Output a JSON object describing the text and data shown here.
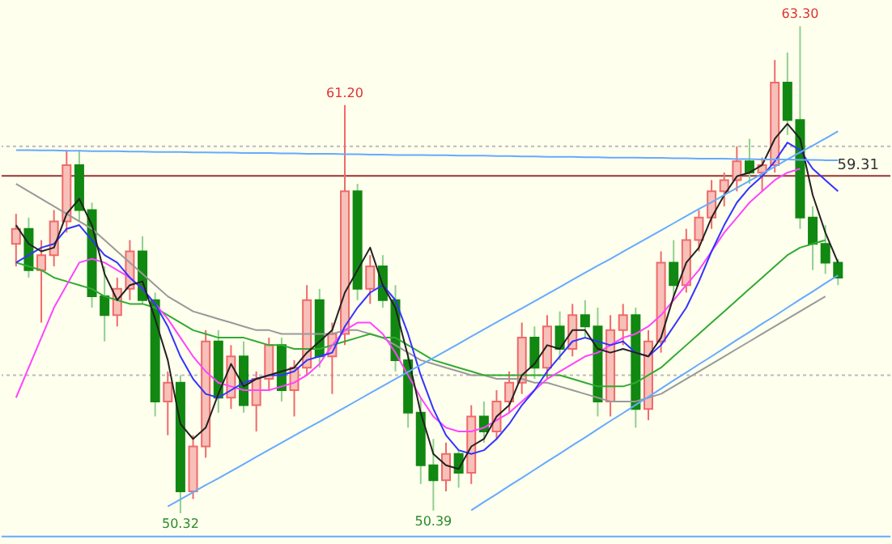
{
  "chart_data": {
    "type": "candlestick",
    "categories": [
      null,
      null,
      null,
      null,
      null,
      null,
      null,
      null,
      null,
      null,
      null,
      null,
      null,
      null,
      null,
      null,
      null,
      null,
      null,
      null,
      null,
      null,
      null,
      null,
      null,
      null,
      null,
      null,
      null,
      null,
      null,
      null,
      null,
      null,
      null,
      null,
      null,
      null,
      null,
      null,
      null,
      null,
      null,
      null,
      null,
      null,
      null,
      null,
      null,
      null,
      null,
      null,
      null,
      null,
      null,
      null,
      null,
      null,
      null,
      null,
      null,
      null,
      null,
      null,
      null,
      null
    ],
    "ohlc": [
      [
        57.5,
        58.3,
        56.9,
        57.9
      ],
      [
        57.9,
        58.2,
        56.6,
        56.8
      ],
      [
        56.8,
        57.6,
        55.4,
        57.2
      ],
      [
        57.2,
        58.4,
        56.9,
        58.1
      ],
      [
        58.1,
        60.0,
        57.8,
        59.6
      ],
      [
        59.6,
        60.0,
        58.1,
        58.4
      ],
      [
        58.4,
        58.6,
        55.8,
        56.1
      ],
      [
        56.1,
        56.9,
        54.9,
        55.6
      ],
      [
        55.6,
        56.6,
        55.3,
        56.3
      ],
      [
        56.3,
        57.6,
        56.0,
        57.3
      ],
      [
        57.3,
        57.7,
        55.9,
        56.0
      ],
      [
        56.0,
        56.2,
        52.9,
        53.3
      ],
      [
        53.3,
        54.1,
        52.4,
        53.8
      ],
      [
        53.8,
        54.0,
        50.32,
        50.9
      ],
      [
        50.9,
        52.4,
        50.7,
        52.1
      ],
      [
        52.1,
        55.2,
        51.8,
        54.9
      ],
      [
        54.9,
        55.2,
        53.0,
        53.4
      ],
      [
        53.4,
        54.8,
        53.1,
        54.5
      ],
      [
        54.5,
        54.9,
        53.0,
        53.2
      ],
      [
        53.2,
        54.1,
        52.5,
        53.9
      ],
      [
        53.9,
        55.0,
        53.6,
        54.8
      ],
      [
        54.8,
        55.0,
        53.3,
        53.6
      ],
      [
        53.6,
        54.4,
        52.9,
        54.2
      ],
      [
        54.2,
        56.4,
        54.0,
        56.0
      ],
      [
        56.0,
        56.3,
        54.2,
        54.5
      ],
      [
        54.5,
        55.4,
        53.5,
        55.1
      ],
      [
        55.1,
        61.2,
        54.8,
        58.9
      ],
      [
        58.9,
        59.1,
        56.0,
        56.3
      ],
      [
        56.3,
        57.2,
        55.9,
        56.9
      ],
      [
        56.9,
        57.2,
        55.8,
        56.0
      ],
      [
        56.0,
        56.4,
        54.1,
        54.4
      ],
      [
        54.4,
        54.6,
        52.6,
        53.0
      ],
      [
        53.0,
        53.4,
        51.1,
        51.6
      ],
      [
        51.6,
        52.3,
        50.39,
        51.2
      ],
      [
        51.2,
        52.2,
        50.9,
        51.9
      ],
      [
        51.9,
        52.0,
        51.0,
        51.4
      ],
      [
        51.4,
        53.2,
        51.1,
        52.9
      ],
      [
        52.9,
        53.3,
        52.2,
        52.5
      ],
      [
        52.5,
        53.6,
        52.3,
        53.3
      ],
      [
        53.3,
        54.1,
        53.0,
        53.8
      ],
      [
        53.8,
        55.4,
        53.5,
        55.0
      ],
      [
        55.0,
        55.3,
        53.9,
        54.2
      ],
      [
        54.2,
        55.6,
        53.9,
        55.3
      ],
      [
        55.3,
        55.7,
        54.4,
        54.7
      ],
      [
        54.7,
        55.9,
        54.5,
        55.6
      ],
      [
        55.6,
        56.0,
        55.0,
        55.3
      ],
      [
        55.3,
        55.8,
        52.9,
        53.3
      ],
      [
        53.3,
        55.6,
        52.9,
        55.2
      ],
      [
        55.2,
        55.9,
        54.8,
        55.6
      ],
      [
        55.6,
        55.8,
        52.6,
        53.1
      ],
      [
        53.1,
        55.2,
        52.8,
        54.9
      ],
      [
        54.9,
        57.3,
        54.6,
        57.0
      ],
      [
        57.0,
        57.6,
        56.1,
        56.4
      ],
      [
        56.4,
        57.9,
        56.2,
        57.6
      ],
      [
        57.6,
        58.4,
        57.3,
        58.2
      ],
      [
        58.2,
        59.2,
        57.9,
        58.9
      ],
      [
        58.9,
        59.4,
        58.5,
        59.2
      ],
      [
        59.2,
        60.1,
        58.9,
        59.7
      ],
      [
        59.7,
        60.3,
        59.1,
        59.4
      ],
      [
        59.4,
        59.8,
        58.9,
        59.6
      ],
      [
        59.6,
        62.4,
        59.4,
        61.8
      ],
      [
        61.8,
        62.6,
        60.4,
        60.8
      ],
      [
        60.8,
        63.3,
        57.9,
        58.2
      ],
      [
        58.2,
        58.5,
        56.8,
        57.5
      ],
      [
        57.5,
        58.0,
        56.7,
        57.0
      ],
      [
        57.0,
        57.1,
        56.4,
        56.6
      ]
    ],
    "ylim": [
      49.5,
      64.0
    ],
    "tick_labels": false,
    "series": [
      {
        "type": "line",
        "color": "#999999",
        "values": [
          59.1,
          58.9,
          58.7,
          58.5,
          58.3,
          58.1,
          57.9,
          57.6,
          57.3,
          57.0,
          56.7,
          56.4,
          56.1,
          55.9,
          55.7,
          55.6,
          55.5,
          55.4,
          55.3,
          55.2,
          55.2,
          55.1,
          55.1,
          55.1,
          55.1,
          55.1,
          55.2,
          55.2,
          55.1,
          55.0,
          54.8,
          54.6,
          54.4,
          54.3,
          54.2,
          54.1,
          54.0,
          54.0,
          53.9,
          53.9,
          53.9,
          53.8,
          53.8,
          53.7,
          53.6,
          53.5,
          53.4,
          53.3,
          53.3,
          53.3,
          53.4,
          53.5,
          53.7,
          53.9,
          54.1,
          54.3,
          54.5,
          54.7,
          54.9,
          55.1,
          55.3,
          55.5,
          55.7,
          55.9,
          56.1,
          null
        ]
      },
      {
        "type": "line",
        "color": "#33aa33",
        "values": [
          57.0,
          56.9,
          56.8,
          56.6,
          56.5,
          56.4,
          56.3,
          56.1,
          56.0,
          55.9,
          55.9,
          55.8,
          55.6,
          55.4,
          55.2,
          55.1,
          55.0,
          55.0,
          55.0,
          54.9,
          54.8,
          54.8,
          54.7,
          54.7,
          54.7,
          54.8,
          54.9,
          55.0,
          55.1,
          55.0,
          55.0,
          54.8,
          54.6,
          54.4,
          54.3,
          54.2,
          54.1,
          54.0,
          54.0,
          54.0,
          54.0,
          54.0,
          54.0,
          54.0,
          53.9,
          53.8,
          53.7,
          53.7,
          53.7,
          53.8,
          54.0,
          54.2,
          54.5,
          54.8,
          55.1,
          55.4,
          55.7,
          56.0,
          56.3,
          56.6,
          56.9,
          57.2,
          57.4,
          57.5,
          57.6,
          null
        ]
      },
      {
        "type": "line",
        "color": "#ff44ff",
        "values": [
          53.4,
          54.2,
          55.0,
          55.8,
          56.4,
          57.0,
          57.1,
          57.0,
          56.8,
          56.6,
          56.3,
          55.9,
          55.5,
          55.0,
          54.5,
          54.1,
          53.8,
          53.7,
          53.6,
          53.6,
          53.6,
          53.7,
          53.8,
          54.0,
          54.3,
          54.8,
          55.2,
          55.4,
          55.4,
          55.1,
          54.6,
          54.0,
          53.4,
          52.9,
          52.6,
          52.5,
          52.5,
          52.6,
          52.8,
          53.0,
          53.3,
          53.6,
          53.9,
          54.1,
          54.3,
          54.5,
          54.6,
          54.8,
          55.0,
          55.1,
          55.3,
          55.6,
          56.0,
          56.4,
          56.8,
          57.3,
          57.8,
          58.2,
          58.6,
          58.9,
          59.2,
          59.4,
          59.5,
          null,
          null,
          null
        ]
      },
      {
        "type": "line",
        "color": "#3333ff",
        "values": [
          57.0,
          57.2,
          57.4,
          57.5,
          57.9,
          58.0,
          57.6,
          57.2,
          57.0,
          56.6,
          56.3,
          55.9,
          55.3,
          54.5,
          53.9,
          53.5,
          53.4,
          53.6,
          53.8,
          53.9,
          54.0,
          54.0,
          54.1,
          54.4,
          54.5,
          54.6,
          55.3,
          55.8,
          56.2,
          56.4,
          56.0,
          55.1,
          54.0,
          53.1,
          52.4,
          52.0,
          51.9,
          52.0,
          52.3,
          52.7,
          53.2,
          53.6,
          54.1,
          54.5,
          54.9,
          55.0,
          54.9,
          54.8,
          54.9,
          54.6,
          54.5,
          54.8,
          55.3,
          55.8,
          56.5,
          57.3,
          58.0,
          58.6,
          59.0,
          59.3,
          59.7,
          60.2,
          60.0,
          59.5,
          59.2,
          58.9
        ]
      },
      {
        "type": "line",
        "color": "#222222",
        "values": [
          58.0,
          57.5,
          57.3,
          57.4,
          58.3,
          58.7,
          58.0,
          56.7,
          56.0,
          56.4,
          56.5,
          55.5,
          54.4,
          52.7,
          52.3,
          52.6,
          53.5,
          54.3,
          53.7,
          53.9,
          54.0,
          54.1,
          54.2,
          54.6,
          54.9,
          55.2,
          56.2,
          56.8,
          57.4,
          56.4,
          55.8,
          54.5,
          53.0,
          51.9,
          51.6,
          51.5,
          52.1,
          52.3,
          52.9,
          53.2,
          54.0,
          54.3,
          54.8,
          54.7,
          55.2,
          55.2,
          54.7,
          54.6,
          54.7,
          54.6,
          54.5,
          55.0,
          56.1,
          57.0,
          57.4,
          58.2,
          58.8,
          59.3,
          59.4,
          59.6,
          60.3,
          60.7,
          60.3,
          58.8,
          57.8,
          57.0
        ]
      },
      {
        "type": "line",
        "color": "#66aaff",
        "values": [
          60.0,
          60.0,
          59.99,
          59.99,
          59.98,
          59.98,
          59.97,
          59.97,
          59.97,
          59.96,
          59.96,
          59.95,
          59.95,
          59.95,
          59.94,
          59.94,
          59.93,
          59.93,
          59.92,
          59.92,
          59.92,
          59.91,
          59.91,
          59.9,
          59.9,
          59.9,
          59.89,
          59.89,
          59.88,
          59.88,
          59.87,
          59.87,
          59.87,
          59.86,
          59.86,
          59.85,
          59.85,
          59.85,
          59.84,
          59.84,
          59.83,
          59.83,
          59.82,
          59.82,
          59.82,
          59.81,
          59.81,
          59.8,
          59.8,
          59.8,
          59.79,
          59.79,
          59.78,
          59.78,
          59.77,
          59.77,
          59.77,
          59.76,
          59.76,
          59.75,
          59.75,
          59.75,
          59.74,
          59.74,
          59.73,
          59.73
        ]
      },
      {
        "type": "line",
        "color": "#66aaff",
        "values": [
          null,
          null,
          null,
          null,
          null,
          null,
          null,
          null,
          null,
          null,
          null,
          null,
          50.5,
          50.69,
          50.88,
          51.07,
          51.25,
          51.44,
          51.63,
          51.82,
          52.01,
          52.2,
          52.39,
          52.58,
          52.76,
          52.95,
          53.14,
          53.33,
          53.52,
          53.71,
          53.9,
          54.09,
          54.27,
          54.46,
          54.65,
          54.84,
          55.03,
          55.22,
          55.41,
          55.6,
          55.78,
          55.97,
          56.16,
          56.35,
          56.54,
          56.73,
          56.92,
          57.1,
          57.29,
          57.48,
          57.67,
          57.86,
          58.05,
          58.24,
          58.43,
          58.61,
          58.8,
          58.99,
          59.18,
          59.37,
          59.56,
          59.75,
          59.94,
          60.12,
          60.31,
          60.5
        ]
      },
      {
        "type": "line",
        "color": "#66aaff",
        "values": [
          null,
          null,
          null,
          null,
          null,
          null,
          null,
          null,
          null,
          null,
          null,
          null,
          null,
          null,
          null,
          null,
          null,
          null,
          null,
          null,
          null,
          null,
          null,
          null,
          null,
          null,
          null,
          null,
          null,
          null,
          null,
          null,
          null,
          null,
          null,
          null,
          50.4,
          50.62,
          50.83,
          51.05,
          51.26,
          51.48,
          51.7,
          51.91,
          52.13,
          52.34,
          52.56,
          52.78,
          52.99,
          53.21,
          53.42,
          53.64,
          53.86,
          54.07,
          54.29,
          54.5,
          54.72,
          54.94,
          55.15,
          55.37,
          55.58,
          55.8,
          56.02,
          56.23,
          56.45,
          56.66
        ]
      }
    ],
    "ref_lines": [
      {
        "axis": "y",
        "value": 59.31,
        "label": "59.31",
        "color": "#993333"
      },
      {
        "axis": "y",
        "value": 49.7,
        "color": "#66aaff"
      },
      {
        "axis": "y",
        "value": 60.1,
        "color": "#bbbbbb",
        "line_style": "dotted"
      },
      {
        "axis": "y",
        "value": 54.0,
        "color": "#bbbbbb",
        "line_style": "dotted"
      }
    ],
    "annotations": [
      {
        "text": "50.32",
        "y": 50.32
      },
      {
        "text": "61.20",
        "y": 61.2
      },
      {
        "text": "50.39",
        "y": 50.39
      },
      {
        "text": "63.30",
        "y": 63.3
      }
    ]
  }
}
